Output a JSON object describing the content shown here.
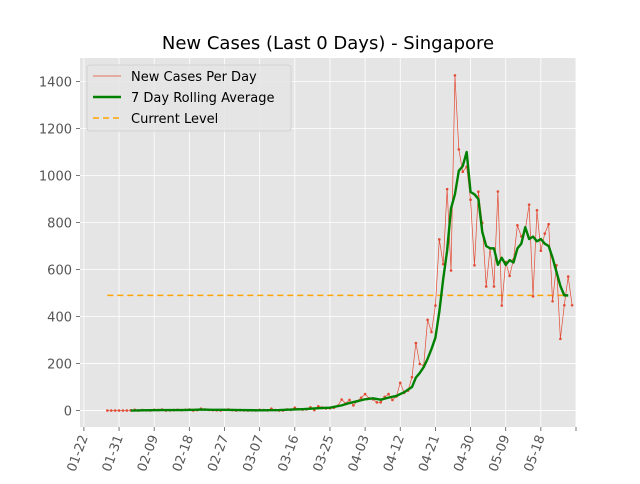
{
  "chart_data": {
    "type": "line",
    "title": "New Cases (Last 0 Days) - Singapore",
    "xlabel": "",
    "ylabel": "",
    "x_ticks": [
      "01-22",
      "01-31",
      "02-09",
      "02-18",
      "02-27",
      "03-07",
      "03-16",
      "03-25",
      "04-03",
      "04-12",
      "04-21",
      "04-30",
      "05-09",
      "05-18"
    ],
    "y_ticks": [
      0,
      200,
      400,
      600,
      800,
      1000,
      1200,
      1400
    ],
    "ylim": [
      -70,
      1500
    ],
    "x_range_days": [
      -1,
      126
    ],
    "grid": true,
    "legend_placement": "top-left",
    "colors": {
      "daily": "#E24A33",
      "rolling": "#008000",
      "current": "#FFA500",
      "background": "#E5E5E5",
      "grid": "#FFFFFF"
    },
    "series": [
      {
        "name": "New Cases Per Day",
        "style": "thin-line-with-dot-markers",
        "points": [
          [
            6,
            0
          ],
          [
            7,
            0
          ],
          [
            8,
            0
          ],
          [
            9,
            0
          ],
          [
            10,
            0
          ],
          [
            11,
            0
          ],
          [
            12,
            1
          ],
          [
            13,
            3
          ],
          [
            14,
            0
          ],
          [
            15,
            2
          ],
          [
            16,
            1
          ],
          [
            17,
            0
          ],
          [
            18,
            3
          ],
          [
            19,
            2
          ],
          [
            20,
            4
          ],
          [
            21,
            0
          ],
          [
            22,
            1
          ],
          [
            23,
            2
          ],
          [
            24,
            3
          ],
          [
            25,
            2
          ],
          [
            26,
            3
          ],
          [
            27,
            4
          ],
          [
            28,
            0
          ],
          [
            29,
            2
          ],
          [
            30,
            8
          ],
          [
            31,
            5
          ],
          [
            32,
            3
          ],
          [
            33,
            2
          ],
          [
            34,
            1
          ],
          [
            35,
            0
          ],
          [
            36,
            3
          ],
          [
            37,
            5
          ],
          [
            38,
            2
          ],
          [
            39,
            0
          ],
          [
            40,
            2
          ],
          [
            41,
            1
          ],
          [
            42,
            0
          ],
          [
            43,
            1
          ],
          [
            44,
            0
          ],
          [
            45,
            3
          ],
          [
            46,
            2
          ],
          [
            47,
            1
          ],
          [
            48,
            8
          ],
          [
            49,
            2
          ],
          [
            50,
            0
          ],
          [
            51,
            0
          ],
          [
            52,
            5
          ],
          [
            53,
            3
          ],
          [
            54,
            12
          ],
          [
            55,
            6
          ],
          [
            56,
            4
          ],
          [
            57,
            5
          ],
          [
            58,
            14
          ],
          [
            59,
            2
          ],
          [
            60,
            18
          ],
          [
            61,
            13
          ],
          [
            62,
            9
          ],
          [
            63,
            10
          ],
          [
            64,
            12
          ],
          [
            65,
            20
          ],
          [
            66,
            47
          ],
          [
            67,
            30
          ],
          [
            68,
            45
          ],
          [
            69,
            22
          ],
          [
            70,
            40
          ],
          [
            71,
            55
          ],
          [
            72,
            70
          ],
          [
            73,
            52
          ],
          [
            74,
            48
          ],
          [
            75,
            35
          ],
          [
            76,
            35
          ],
          [
            77,
            58
          ],
          [
            78,
            70
          ],
          [
            79,
            45
          ],
          [
            80,
            60
          ],
          [
            81,
            118
          ],
          [
            82,
            75
          ],
          [
            83,
            85
          ],
          [
            84,
            142
          ],
          [
            85,
            287
          ],
          [
            86,
            198
          ],
          [
            87,
            191
          ],
          [
            88,
            386
          ],
          [
            89,
            334
          ],
          [
            90,
            447
          ],
          [
            91,
            728
          ],
          [
            92,
            623
          ],
          [
            93,
            942
          ],
          [
            94,
            596
          ],
          [
            95,
            1426
          ],
          [
            96,
            1111
          ],
          [
            97,
            1016
          ],
          [
            98,
            1037
          ],
          [
            99,
            897
          ],
          [
            100,
            618
          ],
          [
            101,
            931
          ],
          [
            102,
            799
          ],
          [
            103,
            528
          ],
          [
            104,
            690
          ],
          [
            105,
            528
          ],
          [
            106,
            932
          ],
          [
            107,
            447
          ],
          [
            108,
            632
          ],
          [
            109,
            573
          ],
          [
            110,
            643
          ],
          [
            111,
            788
          ],
          [
            112,
            741
          ],
          [
            113,
            768
          ],
          [
            114,
            876
          ],
          [
            115,
            486
          ],
          [
            116,
            852
          ],
          [
            117,
            680
          ],
          [
            118,
            753
          ],
          [
            119,
            793
          ],
          [
            120,
            465
          ],
          [
            121,
            618
          ],
          [
            122,
            305
          ],
          [
            123,
            448
          ],
          [
            124,
            570
          ],
          [
            125,
            448
          ]
        ]
      },
      {
        "name": "7 Day Rolling Average",
        "style": "thick-line",
        "points": [
          [
            12,
            0
          ],
          [
            15,
            1
          ],
          [
            20,
            2
          ],
          [
            25,
            2
          ],
          [
            28,
            3
          ],
          [
            30,
            4
          ],
          [
            33,
            3
          ],
          [
            36,
            3
          ],
          [
            40,
            2
          ],
          [
            45,
            1
          ],
          [
            50,
            2
          ],
          [
            53,
            4
          ],
          [
            56,
            6
          ],
          [
            60,
            10
          ],
          [
            63,
            12
          ],
          [
            66,
            22
          ],
          [
            68,
            32
          ],
          [
            70,
            40
          ],
          [
            72,
            48
          ],
          [
            74,
            52
          ],
          [
            76,
            46
          ],
          [
            78,
            55
          ],
          [
            80,
            62
          ],
          [
            82,
            78
          ],
          [
            84,
            100
          ],
          [
            85,
            140
          ],
          [
            86,
            160
          ],
          [
            87,
            185
          ],
          [
            88,
            220
          ],
          [
            89,
            262
          ],
          [
            90,
            310
          ],
          [
            91,
            420
          ],
          [
            92,
            560
          ],
          [
            93,
            680
          ],
          [
            94,
            860
          ],
          [
            95,
            920
          ],
          [
            96,
            1020
          ],
          [
            97,
            1040
          ],
          [
            98,
            1100
          ],
          [
            99,
            930
          ],
          [
            100,
            920
          ],
          [
            101,
            900
          ],
          [
            102,
            760
          ],
          [
            103,
            700
          ],
          [
            104,
            690
          ],
          [
            105,
            690
          ],
          [
            106,
            620
          ],
          [
            107,
            650
          ],
          [
            108,
            620
          ],
          [
            109,
            640
          ],
          [
            110,
            630
          ],
          [
            111,
            690
          ],
          [
            112,
            710
          ],
          [
            113,
            780
          ],
          [
            114,
            730
          ],
          [
            115,
            740
          ],
          [
            116,
            720
          ],
          [
            117,
            730
          ],
          [
            118,
            710
          ],
          [
            119,
            700
          ],
          [
            120,
            650
          ],
          [
            121,
            590
          ],
          [
            122,
            530
          ],
          [
            123,
            490
          ],
          [
            124,
            490
          ]
        ]
      },
      {
        "name": "Current Level",
        "style": "dashed",
        "value": 490,
        "x_span": [
          6,
          124
        ]
      }
    ]
  }
}
